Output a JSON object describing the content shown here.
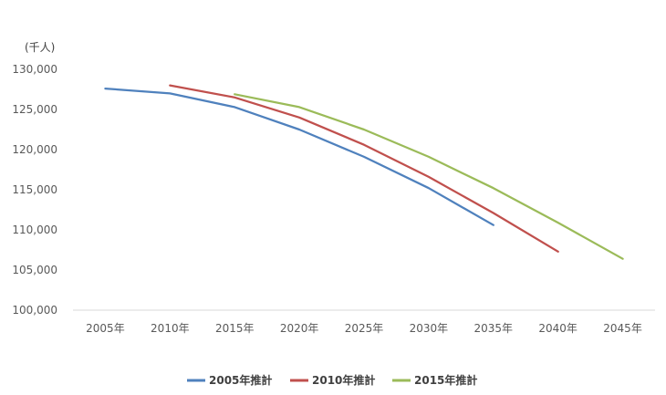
{
  "chart_data": {
    "type": "line",
    "unit_label": "(千人)",
    "categories": [
      "2005年",
      "2010年",
      "2015年",
      "2020年",
      "2025年",
      "2030年",
      "2035年",
      "2040年",
      "2045年"
    ],
    "yticks": [
      "100,000",
      "105,000",
      "110,000",
      "115,000",
      "120,000",
      "125,000",
      "130,000"
    ],
    "ylim": [
      100000,
      130000
    ],
    "grid": false,
    "legend_position": "bottom",
    "series": [
      {
        "name": "2005年推計",
        "color": "#4F81BD",
        "values": [
          127600,
          127000,
          125300,
          122500,
          119100,
          115200,
          110600,
          null,
          null
        ]
      },
      {
        "name": "2010年推計",
        "color": "#C0504D",
        "values": [
          null,
          128000,
          126500,
          124000,
          120600,
          116600,
          112100,
          107300,
          null
        ]
      },
      {
        "name": "2015年推計",
        "color": "#9BBB59",
        "values": [
          null,
          null,
          126900,
          125300,
          122500,
          119100,
          115200,
          110900,
          106400
        ]
      }
    ]
  }
}
